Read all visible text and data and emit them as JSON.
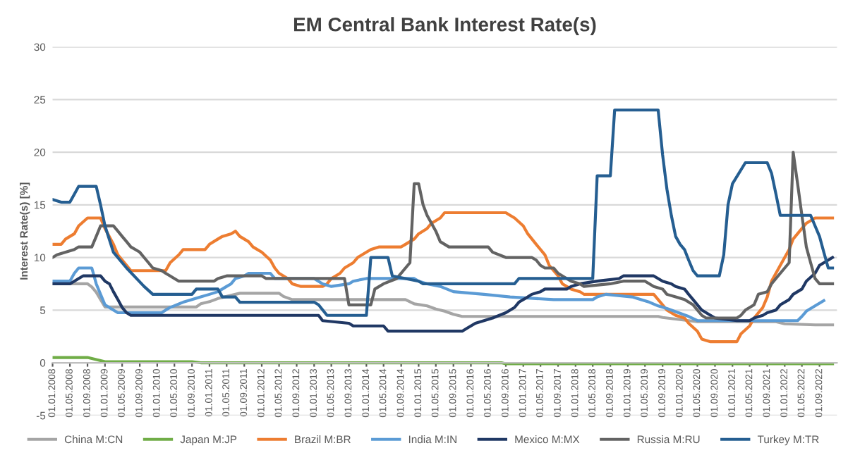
{
  "chart_data": {
    "type": "line",
    "title": "EM Central Bank Interest Rate(s)",
    "ylabel": "Interest Rate(s) [%]",
    "ylim": [
      -5,
      30
    ],
    "yticks": [
      -5,
      0,
      5,
      10,
      15,
      20,
      25,
      30
    ],
    "xlim": [
      "2008-01",
      "2023-01"
    ],
    "xticks": [
      {
        "value": "2008-01-01",
        "label": "01.01.2008"
      },
      {
        "value": "2008-05-01",
        "label": "01.05.2008"
      },
      {
        "value": "2008-09-01",
        "label": "01.09.2008"
      },
      {
        "value": "2009-01-01",
        "label": "01.01.2009"
      },
      {
        "value": "2009-05-01",
        "label": "01.05.2009"
      },
      {
        "value": "2009-09-01",
        "label": "01.09.2009"
      },
      {
        "value": "2010-01-01",
        "label": "01.01.2010"
      },
      {
        "value": "2010-05-01",
        "label": "01.05.2010"
      },
      {
        "value": "2010-09-01",
        "label": "01.09.2010"
      },
      {
        "value": "2011-01-01",
        "label": "01.01.2011"
      },
      {
        "value": "2011-05-01",
        "label": "01.05.2011"
      },
      {
        "value": "2011-09-01",
        "label": "01.09.2011"
      },
      {
        "value": "2012-01-01",
        "label": "01.01.2012"
      },
      {
        "value": "2012-05-01",
        "label": "01.05.2012"
      },
      {
        "value": "2012-09-01",
        "label": "01.09.2012"
      },
      {
        "value": "2013-01-01",
        "label": "01.01.2013"
      },
      {
        "value": "2013-05-01",
        "label": "01.05.2013"
      },
      {
        "value": "2013-09-01",
        "label": "01.09.2013"
      },
      {
        "value": "2014-01-01",
        "label": "01.01.2014"
      },
      {
        "value": "2014-05-01",
        "label": "01.05.2014"
      },
      {
        "value": "2014-09-01",
        "label": "01.09.2014"
      },
      {
        "value": "2015-01-01",
        "label": "01.01.2015"
      },
      {
        "value": "2015-05-01",
        "label": "01.05.2015"
      },
      {
        "value": "2015-09-01",
        "label": "01.09.2015"
      },
      {
        "value": "2016-01-01",
        "label": "01.01.2016"
      },
      {
        "value": "2016-05-01",
        "label": "01.05.2016"
      },
      {
        "value": "2016-09-01",
        "label": "01.09.2016"
      },
      {
        "value": "2017-01-01",
        "label": "01.01.2017"
      },
      {
        "value": "2017-05-01",
        "label": "01.05.2017"
      },
      {
        "value": "2017-09-01",
        "label": "01.09.2017"
      },
      {
        "value": "2018-01-01",
        "label": "01.01.2018"
      },
      {
        "value": "2018-05-01",
        "label": "01.05.2018"
      },
      {
        "value": "2018-09-01",
        "label": "01.09.2018"
      },
      {
        "value": "2019-01-01",
        "label": "01.01.2019"
      },
      {
        "value": "2019-05-01",
        "label": "01.05.2019"
      },
      {
        "value": "2019-09-01",
        "label": "01.09.2019"
      },
      {
        "value": "2020-01-01",
        "label": "01.01.2020"
      },
      {
        "value": "2020-05-01",
        "label": "01.05.2020"
      },
      {
        "value": "2020-09-01",
        "label": "01.09.2020"
      },
      {
        "value": "2021-01-01",
        "label": "01.01.2021"
      },
      {
        "value": "2021-05-01",
        "label": "01.05.2021"
      },
      {
        "value": "2021-09-01",
        "label": "01.09.2021"
      },
      {
        "value": "2022-01-01",
        "label": "01.01.2022"
      },
      {
        "value": "2022-05-01",
        "label": "01.05.2022"
      },
      {
        "value": "2022-09-01",
        "label": "01.09.2022"
      }
    ],
    "grid": "y",
    "legend": "bottom",
    "marker": "none",
    "line_style": "solid",
    "series": [
      {
        "name": "China M:CN",
        "color": "#a5a5a5",
        "x": [
          "2008-01",
          "2008-09",
          "2008-10",
          "2008-11",
          "2009-01",
          "2010-10",
          "2010-11",
          "2011-01",
          "2011-03",
          "2011-05",
          "2011-08",
          "2012-05",
          "2012-06",
          "2012-08",
          "2014-10",
          "2014-12",
          "2015-03",
          "2015-05",
          "2015-07",
          "2015-09",
          "2015-11",
          "2019-08",
          "2019-09",
          "2019-11",
          "2020-01",
          "2020-05",
          "2021-11",
          "2021-12",
          "2022-01",
          "2022-08",
          "2022-12"
        ],
        "values": [
          7.5,
          7.5,
          7.2,
          6.7,
          5.3,
          5.3,
          5.6,
          5.8,
          6.1,
          6.3,
          6.6,
          6.6,
          6.3,
          6.0,
          6.0,
          5.6,
          5.4,
          5.1,
          4.9,
          4.6,
          4.4,
          4.4,
          4.3,
          4.2,
          4.1,
          3.9,
          3.9,
          3.8,
          3.7,
          3.6,
          3.6
        ]
      },
      {
        "name": "Japan M:JP",
        "color": "#70ad47",
        "x": [
          "2008-01",
          "2008-09",
          "2008-11",
          "2009-01",
          "2010-09",
          "2010-11",
          "2016-08",
          "2016-09",
          "2022-12"
        ],
        "values": [
          0.5,
          0.5,
          0.3,
          0.1,
          0.1,
          0.0,
          0.0,
          -0.1,
          -0.1
        ]
      },
      {
        "name": "Brazil M:BR",
        "color": "#ed7d31",
        "x": [
          "2008-01",
          "2008-03",
          "2008-04",
          "2008-06",
          "2008-07",
          "2008-09",
          "2008-12",
          "2009-01",
          "2009-03",
          "2009-04",
          "2009-06",
          "2009-07",
          "2010-03",
          "2010-04",
          "2010-06",
          "2010-07",
          "2010-12",
          "2011-01",
          "2011-03",
          "2011-04",
          "2011-06",
          "2011-07",
          "2011-08",
          "2011-10",
          "2011-11",
          "2012-01",
          "2012-03",
          "2012-04",
          "2012-05",
          "2012-07",
          "2012-08",
          "2012-10",
          "2013-03",
          "2013-04",
          "2013-05",
          "2013-07",
          "2013-08",
          "2013-10",
          "2013-11",
          "2014-01",
          "2014-02",
          "2014-04",
          "2014-09",
          "2014-10",
          "2014-12",
          "2015-01",
          "2015-03",
          "2015-04",
          "2015-06",
          "2015-07",
          "2016-09",
          "2016-10",
          "2016-11",
          "2017-01",
          "2017-02",
          "2017-04",
          "2017-06",
          "2017-07",
          "2017-09",
          "2017-10",
          "2017-12",
          "2018-02",
          "2018-03",
          "2019-07",
          "2019-08",
          "2019-09",
          "2019-10",
          "2019-12",
          "2020-02",
          "2020-03",
          "2020-05",
          "2020-06",
          "2020-08",
          "2021-02",
          "2021-03",
          "2021-05",
          "2021-06",
          "2021-08",
          "2021-09",
          "2021-10",
          "2021-12",
          "2022-02",
          "2022-03",
          "2022-05",
          "2022-06",
          "2022-08",
          "2022-12"
        ],
        "values": [
          11.25,
          11.25,
          11.75,
          12.25,
          13.0,
          13.75,
          13.75,
          12.75,
          11.25,
          10.25,
          9.25,
          8.75,
          8.75,
          9.5,
          10.25,
          10.75,
          10.75,
          11.25,
          11.75,
          12.0,
          12.25,
          12.5,
          12.0,
          11.5,
          11.0,
          10.5,
          9.75,
          9.0,
          8.5,
          8.0,
          7.5,
          7.25,
          7.25,
          7.5,
          8.0,
          8.5,
          9.0,
          9.5,
          10.0,
          10.5,
          10.75,
          11.0,
          11.0,
          11.25,
          11.75,
          12.25,
          12.75,
          13.25,
          13.75,
          14.25,
          14.25,
          14.0,
          13.75,
          13.0,
          12.25,
          11.25,
          10.25,
          9.25,
          8.25,
          7.5,
          7.0,
          6.75,
          6.5,
          6.5,
          6.0,
          5.5,
          5.0,
          4.5,
          4.25,
          3.75,
          3.0,
          2.25,
          2.0,
          2.0,
          2.75,
          3.5,
          4.25,
          5.25,
          6.25,
          7.75,
          9.25,
          10.75,
          11.75,
          12.75,
          13.25,
          13.75,
          13.75
        ]
      },
      {
        "name": "India M:IN",
        "color": "#5b9bd5",
        "x": [
          "2008-01",
          "2008-05",
          "2008-06",
          "2008-07",
          "2008-10",
          "2008-11",
          "2008-12",
          "2009-01",
          "2009-03",
          "2009-04",
          "2010-02",
          "2010-03",
          "2010-04",
          "2010-07",
          "2010-09",
          "2010-11",
          "2011-01",
          "2011-03",
          "2011-05",
          "2011-06",
          "2011-07",
          "2011-09",
          "2011-10",
          "2012-03",
          "2012-04",
          "2013-01",
          "2013-03",
          "2013-05",
          "2013-09",
          "2013-10",
          "2014-01",
          "2014-12",
          "2015-01",
          "2015-03",
          "2015-06",
          "2015-09",
          "2016-04",
          "2016-10",
          "2017-08",
          "2018-05",
          "2018-06",
          "2018-08",
          "2019-02",
          "2019-04",
          "2019-06",
          "2019-08",
          "2019-10",
          "2020-03",
          "2020-05",
          "2022-04",
          "2022-05",
          "2022-06",
          "2022-08",
          "2022-10"
        ],
        "values": [
          7.75,
          7.75,
          8.5,
          9.0,
          9.0,
          7.5,
          6.5,
          5.5,
          5.0,
          4.75,
          4.75,
          5.0,
          5.25,
          5.75,
          6.0,
          6.25,
          6.5,
          6.75,
          7.25,
          7.5,
          8.0,
          8.25,
          8.5,
          8.5,
          8.0,
          8.0,
          7.5,
          7.25,
          7.5,
          7.75,
          8.0,
          8.0,
          7.75,
          7.5,
          7.25,
          6.75,
          6.5,
          6.25,
          6.0,
          6.0,
          6.25,
          6.5,
          6.25,
          6.0,
          5.75,
          5.4,
          5.15,
          4.4,
          4.0,
          4.0,
          4.4,
          4.9,
          5.4,
          5.9
        ]
      },
      {
        "name": "Mexico M:MX",
        "color": "#203864",
        "x": [
          "2008-01",
          "2008-05",
          "2008-06",
          "2008-07",
          "2008-08",
          "2008-12",
          "2009-01",
          "2009-02",
          "2009-03",
          "2009-04",
          "2009-05",
          "2009-06",
          "2009-07",
          "2013-02",
          "2013-03",
          "2013-09",
          "2013-10",
          "2014-05",
          "2014-06",
          "2015-11",
          "2015-12",
          "2016-02",
          "2016-06",
          "2016-09",
          "2016-11",
          "2016-12",
          "2017-02",
          "2017-03",
          "2017-05",
          "2017-06",
          "2017-11",
          "2017-12",
          "2018-02",
          "2018-06",
          "2018-11",
          "2018-12",
          "2019-07",
          "2019-08",
          "2019-09",
          "2019-11",
          "2019-12",
          "2020-02",
          "2020-03",
          "2020-04",
          "2020-05",
          "2020-06",
          "2020-08",
          "2020-09",
          "2021-02",
          "2021-05",
          "2021-06",
          "2021-08",
          "2021-09",
          "2021-11",
          "2021-12",
          "2022-02",
          "2022-03",
          "2022-05",
          "2022-06",
          "2022-08",
          "2022-09",
          "2022-11",
          "2022-12"
        ],
        "values": [
          7.5,
          7.5,
          7.75,
          8.0,
          8.25,
          8.25,
          7.75,
          7.5,
          6.75,
          6.0,
          5.25,
          4.75,
          4.5,
          4.5,
          4.0,
          3.75,
          3.5,
          3.5,
          3.0,
          3.0,
          3.25,
          3.75,
          4.25,
          4.75,
          5.25,
          5.75,
          6.25,
          6.5,
          6.75,
          7.0,
          7.0,
          7.25,
          7.5,
          7.75,
          8.0,
          8.25,
          8.25,
          8.0,
          7.75,
          7.5,
          7.25,
          7.0,
          6.5,
          6.0,
          5.5,
          5.0,
          4.5,
          4.25,
          4.0,
          4.0,
          4.25,
          4.5,
          4.75,
          5.0,
          5.5,
          6.0,
          6.5,
          7.0,
          7.75,
          8.5,
          9.25,
          9.75,
          10.0
        ]
      },
      {
        "name": "Russia M:RU",
        "color": "#636363",
        "x": [
          "2008-01",
          "2008-02",
          "2008-04",
          "2008-06",
          "2008-07",
          "2008-10",
          "2008-11",
          "2008-12",
          "2009-03",
          "2009-04",
          "2009-05",
          "2009-06",
          "2009-07",
          "2009-08",
          "2009-09",
          "2009-10",
          "2009-11",
          "2009-12",
          "2010-02",
          "2010-03",
          "2010-04",
          "2010-05",
          "2010-06",
          "2011-02",
          "2011-03",
          "2011-05",
          "2012-01",
          "2012-02",
          "2013-08",
          "2013-09",
          "2014-02",
          "2014-03",
          "2014-05",
          "2014-08",
          "2014-11",
          "2014-12",
          "2015-01",
          "2015-02",
          "2015-03",
          "2015-05",
          "2015-06",
          "2015-08",
          "2016-05",
          "2016-06",
          "2016-09",
          "2017-03",
          "2017-04",
          "2017-05",
          "2017-06",
          "2017-08",
          "2017-09",
          "2017-10",
          "2017-12",
          "2018-02",
          "2018-03",
          "2018-09",
          "2018-12",
          "2019-05",
          "2019-06",
          "2019-07",
          "2019-09",
          "2019-10",
          "2019-12",
          "2020-02",
          "2020-04",
          "2020-06",
          "2020-07",
          "2021-02",
          "2021-03",
          "2021-04",
          "2021-06",
          "2021-07",
          "2021-09",
          "2021-10",
          "2021-12",
          "2022-02",
          "2022-03",
          "2022-04",
          "2022-05",
          "2022-06",
          "2022-07",
          "2022-08",
          "2022-09",
          "2022-12"
        ],
        "values": [
          10.0,
          10.25,
          10.5,
          10.75,
          11.0,
          11.0,
          12.0,
          13.0,
          13.0,
          12.5,
          12.0,
          11.5,
          11.0,
          10.75,
          10.5,
          10.0,
          9.5,
          9.0,
          8.75,
          8.5,
          8.25,
          8.0,
          7.75,
          7.75,
          8.0,
          8.25,
          8.25,
          8.0,
          8.0,
          5.5,
          5.5,
          7.0,
          7.5,
          8.0,
          9.5,
          17.0,
          17.0,
          15.0,
          14.0,
          12.5,
          11.5,
          11.0,
          11.0,
          10.5,
          10.0,
          10.0,
          9.75,
          9.25,
          9.0,
          9.0,
          8.5,
          8.25,
          7.75,
          7.5,
          7.25,
          7.5,
          7.75,
          7.75,
          7.5,
          7.25,
          7.0,
          6.5,
          6.25,
          6.0,
          5.5,
          4.5,
          4.25,
          4.25,
          4.5,
          5.0,
          5.5,
          6.5,
          6.75,
          7.5,
          8.5,
          9.5,
          20.0,
          17.0,
          14.0,
          11.0,
          9.5,
          8.0,
          7.5,
          7.5
        ]
      },
      {
        "name": "Turkey M:TR",
        "color": "#255e91",
        "x": [
          "2008-01",
          "2008-03",
          "2008-05",
          "2008-06",
          "2008-07",
          "2008-11",
          "2008-12",
          "2009-01",
          "2009-03",
          "2009-06",
          "2009-10",
          "2009-12",
          "2010-09",
          "2010-10",
          "2011-03",
          "2011-04",
          "2011-07",
          "2011-08",
          "2013-01",
          "2013-02",
          "2013-04",
          "2014-01",
          "2014-02",
          "2014-06",
          "2014-07",
          "2015-01",
          "2015-02",
          "2016-11",
          "2016-12",
          "2018-05",
          "2018-06",
          "2018-09",
          "2018-10",
          "2019-08",
          "2019-09",
          "2019-10",
          "2019-11",
          "2019-12",
          "2020-01",
          "2020-02",
          "2020-03",
          "2020-04",
          "2020-05",
          "2020-07",
          "2020-10",
          "2020-11",
          "2020-12",
          "2021-01",
          "2021-04",
          "2021-09",
          "2021-10",
          "2021-11",
          "2021-12",
          "2022-07",
          "2022-08",
          "2022-09",
          "2022-10",
          "2022-11",
          "2022-12"
        ],
        "values": [
          15.5,
          15.25,
          15.25,
          16.0,
          16.75,
          16.75,
          15.0,
          13.0,
          10.5,
          9.0,
          7.25,
          6.5,
          6.5,
          7.0,
          7.0,
          6.25,
          6.25,
          5.75,
          5.75,
          5.5,
          4.5,
          4.5,
          10.0,
          10.0,
          8.25,
          7.75,
          7.5,
          7.5,
          8.0,
          8.0,
          17.75,
          17.75,
          24.0,
          24.0,
          19.75,
          16.5,
          14.0,
          12.0,
          11.25,
          10.75,
          9.75,
          8.75,
          8.25,
          8.25,
          8.25,
          10.25,
          15.0,
          17.0,
          19.0,
          19.0,
          18.0,
          16.0,
          14.0,
          14.0,
          13.0,
          12.0,
          10.5,
          9.0,
          9.0
        ]
      }
    ]
  }
}
